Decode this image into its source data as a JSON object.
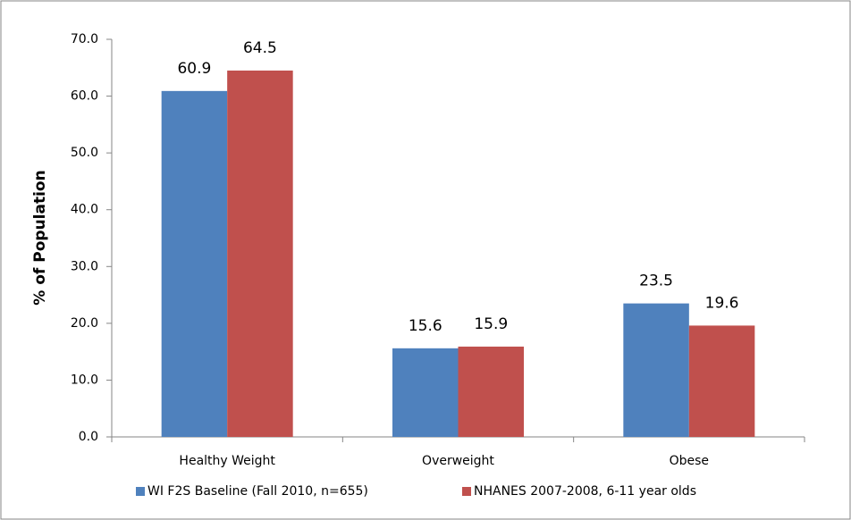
{
  "chart_data": {
    "type": "bar",
    "y_label": "% of Population",
    "categories": [
      "Healthy Weight",
      "Overweight",
      "Obese"
    ],
    "series": [
      {
        "name": "WI F2S Baseline (Fall 2010, n=655)",
        "color": "#4f81bd",
        "values": [
          60.9,
          15.6,
          23.5
        ]
      },
      {
        "name": "NHANES 2007-2008, 6-11 year olds",
        "color": "#c0504d",
        "values": [
          64.5,
          15.9,
          19.6
        ]
      }
    ],
    "ylim": [
      0,
      70
    ],
    "yticks": [
      {
        "value": 0,
        "label": "0.0"
      },
      {
        "value": 10,
        "label": "10.0"
      },
      {
        "value": 20,
        "label": "20.0"
      },
      {
        "value": 30,
        "label": "30.0"
      },
      {
        "value": 40,
        "label": "40.0"
      },
      {
        "value": 50,
        "label": "50.0"
      },
      {
        "value": 60,
        "label": "60.0"
      },
      {
        "value": 70,
        "label": "70.0"
      }
    ],
    "grid": false,
    "legend": "bottom"
  }
}
